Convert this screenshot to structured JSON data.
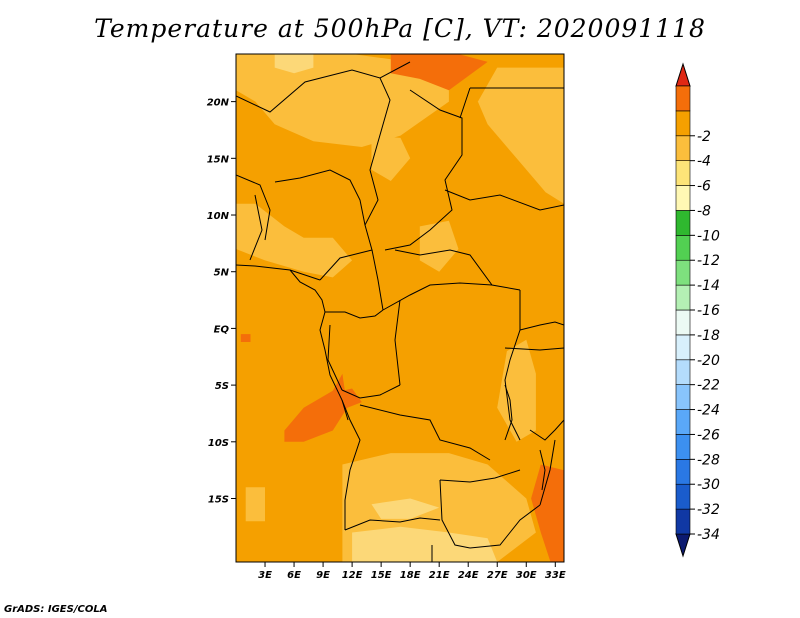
{
  "title": "Temperature at 500hPa [C], VT: 2020091118",
  "credit": "GrADS: IGES/COLA",
  "map": {
    "lon_range": [
      0,
      33.9
    ],
    "lat_range": [
      -20.6,
      24.2
    ],
    "lat_ticks": [
      {
        "value": 20,
        "label": "20N"
      },
      {
        "value": 15,
        "label": "15N"
      },
      {
        "value": 10,
        "label": "10N"
      },
      {
        "value": 5,
        "label": "5N"
      },
      {
        "value": 0,
        "label": "EQ"
      },
      {
        "value": -5,
        "label": "5S"
      },
      {
        "value": -10,
        "label": "10S"
      },
      {
        "value": -15,
        "label": "15S"
      }
    ],
    "lon_ticks": [
      {
        "value": 3,
        "label": "3E"
      },
      {
        "value": 6,
        "label": "6E"
      },
      {
        "value": 9,
        "label": "9E"
      },
      {
        "value": 12,
        "label": "12E"
      },
      {
        "value": 15,
        "label": "15E"
      },
      {
        "value": 18,
        "label": "18E"
      },
      {
        "value": 21,
        "label": "21E"
      },
      {
        "value": 24,
        "label": "24E"
      },
      {
        "value": 27,
        "label": "27E"
      },
      {
        "value": 30,
        "label": "30E"
      },
      {
        "value": 33,
        "label": "33E"
      }
    ],
    "base_color": "#f5a000",
    "regions": [
      {
        "name": "lighter-north",
        "color": "#fbbe3c",
        "pts": [
          [
            0,
            24.2
          ],
          [
            12,
            24.2
          ],
          [
            18,
            23.5
          ],
          [
            22,
            23
          ],
          [
            22,
            20
          ],
          [
            17,
            17
          ],
          [
            13,
            16
          ],
          [
            8,
            16.5
          ],
          [
            4,
            18
          ],
          [
            2,
            20
          ],
          [
            0,
            21
          ]
        ]
      },
      {
        "name": "lightest-north-patch",
        "color": "#fcd878",
        "pts": [
          [
            4,
            24.2
          ],
          [
            8,
            24.2
          ],
          [
            8,
            23
          ],
          [
            6,
            22.5
          ],
          [
            4,
            23
          ]
        ]
      },
      {
        "name": "light-chad-strip",
        "color": "#fbbe3c",
        "pts": [
          [
            14,
            17
          ],
          [
            17,
            16.8
          ],
          [
            18,
            15
          ],
          [
            16,
            13
          ],
          [
            14,
            14
          ]
        ]
      },
      {
        "name": "light-central-patch",
        "color": "#fbbe3c",
        "pts": [
          [
            19,
            9
          ],
          [
            22,
            9.5
          ],
          [
            23,
            7
          ],
          [
            21,
            5
          ],
          [
            19,
            6
          ]
        ]
      },
      {
        "name": "light-west-coast",
        "color": "#fbbe3c",
        "pts": [
          [
            0,
            11
          ],
          [
            2,
            11
          ],
          [
            5,
            9
          ],
          [
            7,
            8
          ],
          [
            10,
            8
          ],
          [
            12,
            6
          ],
          [
            10,
            4.5
          ],
          [
            7,
            5
          ],
          [
            3,
            6
          ],
          [
            0,
            7
          ]
        ]
      },
      {
        "name": "light-east",
        "color": "#fbbe3c",
        "pts": [
          [
            27,
            23
          ],
          [
            33.9,
            23
          ],
          [
            33.9,
            11
          ],
          [
            32,
            12
          ],
          [
            29,
            15
          ],
          [
            26,
            18
          ],
          [
            25,
            20
          ]
        ]
      },
      {
        "name": "light-east-central",
        "color": "#fbbe3c",
        "pts": [
          [
            28,
            -2
          ],
          [
            30,
            -1
          ],
          [
            31,
            -4
          ],
          [
            31,
            -9
          ],
          [
            29,
            -10
          ],
          [
            27,
            -7
          ]
        ]
      },
      {
        "name": "light-south",
        "color": "#fbbe3c",
        "pts": [
          [
            11,
            -12
          ],
          [
            16,
            -11
          ],
          [
            22,
            -11
          ],
          [
            26,
            -12
          ],
          [
            30,
            -15
          ],
          [
            31,
            -18
          ],
          [
            27,
            -20.6
          ],
          [
            11,
            -20.6
          ]
        ]
      },
      {
        "name": "lightest-south",
        "color": "#fcd878",
        "pts": [
          [
            12,
            -18
          ],
          [
            17,
            -17.5
          ],
          [
            22,
            -18
          ],
          [
            26,
            -18.5
          ],
          [
            27,
            -20.6
          ],
          [
            12,
            -20.6
          ]
        ]
      },
      {
        "name": "lightest-south-patch",
        "color": "#fcd878",
        "pts": [
          [
            14,
            -15.5
          ],
          [
            18,
            -15
          ],
          [
            21,
            -15.8
          ],
          [
            18,
            -16.8
          ],
          [
            15,
            -16.8
          ]
        ]
      },
      {
        "name": "light-sw-strip",
        "color": "#fbbe3c",
        "pts": [
          [
            1,
            -14
          ],
          [
            3,
            -14
          ],
          [
            3,
            -17
          ],
          [
            1,
            -17
          ]
        ]
      },
      {
        "name": "warm-north-east",
        "color": "#f46e0a",
        "pts": [
          [
            16,
            24.2
          ],
          [
            23,
            24.2
          ],
          [
            26,
            23.5
          ],
          [
            22,
            21
          ],
          [
            19,
            22
          ],
          [
            16,
            22.5
          ]
        ]
      },
      {
        "name": "warm-angola-coast",
        "color": "#f46e0a",
        "pts": [
          [
            5,
            -9
          ],
          [
            7,
            -7
          ],
          [
            10,
            -5.5
          ],
          [
            11,
            -4
          ],
          [
            11.5,
            -7
          ],
          [
            10,
            -9
          ],
          [
            7,
            -10
          ],
          [
            5,
            -10
          ]
        ]
      },
      {
        "name": "warm-angola-spot",
        "color": "#f46e0a",
        "pts": [
          [
            10.5,
            -5.6
          ],
          [
            12,
            -5.3
          ],
          [
            13,
            -6.5
          ],
          [
            11.5,
            -7
          ]
        ]
      },
      {
        "name": "warm-gulf-spot",
        "color": "#f46e0a",
        "pts": [
          [
            0.5,
            -0.5
          ],
          [
            1.5,
            -0.5
          ],
          [
            1.5,
            -1.2
          ],
          [
            0.5,
            -1.2
          ]
        ]
      },
      {
        "name": "warm-southeast",
        "color": "#f46e0a",
        "pts": [
          [
            31.5,
            -12
          ],
          [
            33.9,
            -12.5
          ],
          [
            33.9,
            -20.6
          ],
          [
            32.5,
            -20.6
          ],
          [
            31.5,
            -18
          ],
          [
            30.5,
            -15
          ]
        ]
      }
    ]
  },
  "colorbar": {
    "colors": [
      "#0c1a70",
      "#1038a4",
      "#1a5ccc",
      "#2a78e4",
      "#3c90f0",
      "#5aa8f8",
      "#88c4fc",
      "#b4dcfc",
      "#d8f0fc",
      "#ecfaf4",
      "#b4f0b4",
      "#7ee07e",
      "#52d052",
      "#2fb82f",
      "#fff8b4",
      "#fde478",
      "#fbbe3c",
      "#f5a000",
      "#f46e0a",
      "#e02814"
    ],
    "labels": [
      "-34",
      "-32",
      "-30",
      "-28",
      "-26",
      "-24",
      "-22",
      "-20",
      "-18",
      "-16",
      "-14",
      "-12",
      "-10",
      "-8",
      "-6",
      "-4",
      "-2"
    ]
  }
}
